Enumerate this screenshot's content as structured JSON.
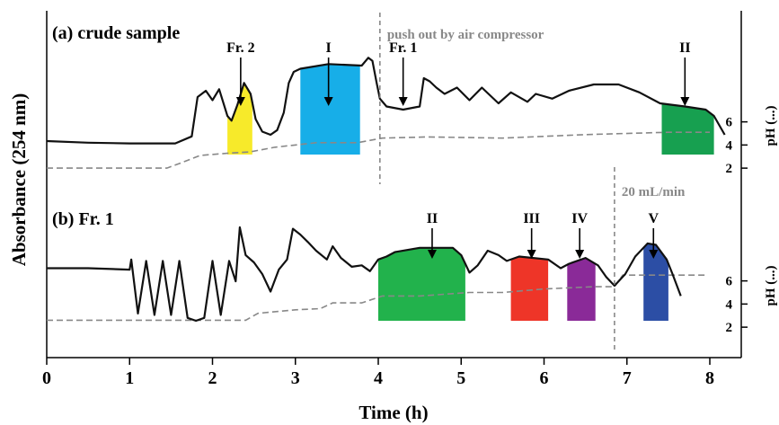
{
  "chart_data": {
    "type": "line",
    "xlabel": "Time (h)",
    "ylabel": "Absorbance (254 nm)",
    "y2label": "pH (...)",
    "xlim": [
      0,
      8.3
    ],
    "x_ticks": [
      "0",
      "1",
      "2",
      "3",
      "4",
      "5",
      "6",
      "7",
      "8"
    ],
    "ph_ticks": [
      "2",
      "4",
      "6"
    ],
    "ph_range": [
      1,
      9
    ],
    "panels": [
      {
        "id": "a",
        "label": "(a) crude sample",
        "divider_x": 4.02,
        "divider_label": "push out by air compressor",
        "absorbance_trace": [
          [
            0,
            1.6
          ],
          [
            0.5,
            1.5
          ],
          [
            1,
            1.45
          ],
          [
            1.55,
            1.45
          ],
          [
            1.75,
            1.9
          ],
          [
            1.82,
            4.4
          ],
          [
            1.92,
            4.8
          ],
          [
            2.0,
            4.2
          ],
          [
            2.08,
            4.9
          ],
          [
            2.18,
            3.2
          ],
          [
            2.23,
            2.9
          ],
          [
            2.3,
            3.9
          ],
          [
            2.38,
            5.3
          ],
          [
            2.46,
            4.6
          ],
          [
            2.52,
            3.0
          ],
          [
            2.6,
            2.2
          ],
          [
            2.7,
            2.0
          ],
          [
            2.78,
            2.3
          ],
          [
            2.86,
            3.4
          ],
          [
            2.92,
            5.3
          ],
          [
            2.98,
            6.0
          ],
          [
            3.06,
            6.2
          ],
          [
            3.4,
            6.5
          ],
          [
            3.8,
            6.4
          ],
          [
            3.88,
            6.9
          ],
          [
            3.93,
            6.7
          ],
          [
            3.98,
            5.3
          ],
          [
            4.02,
            4.3
          ],
          [
            4.1,
            3.8
          ],
          [
            4.3,
            3.6
          ],
          [
            4.5,
            3.8
          ],
          [
            4.55,
            5.6
          ],
          [
            4.62,
            5.4
          ],
          [
            4.7,
            5.0
          ],
          [
            4.8,
            4.6
          ],
          [
            4.95,
            5.0
          ],
          [
            5.1,
            4.2
          ],
          [
            5.25,
            5.0
          ],
          [
            5.45,
            4.0
          ],
          [
            5.6,
            4.7
          ],
          [
            5.8,
            4.1
          ],
          [
            5.9,
            4.6
          ],
          [
            6.1,
            4.3
          ],
          [
            6.3,
            4.8
          ],
          [
            6.6,
            5.2
          ],
          [
            6.9,
            5.2
          ],
          [
            7.15,
            4.7
          ],
          [
            7.4,
            4.0
          ],
          [
            7.7,
            3.8
          ],
          [
            7.95,
            3.6
          ],
          [
            8.05,
            3.2
          ],
          [
            8.18,
            2.0
          ]
        ],
        "ph_profile": [
          [
            0,
            2.0
          ],
          [
            1.45,
            2.0
          ],
          [
            1.6,
            2.4
          ],
          [
            1.85,
            3.1
          ],
          [
            2.2,
            3.3
          ],
          [
            2.45,
            3.4
          ],
          [
            2.75,
            3.8
          ],
          [
            3.25,
            4.2
          ],
          [
            3.75,
            4.2
          ],
          [
            4.05,
            4.6
          ],
          [
            4.6,
            4.7
          ],
          [
            5.5,
            4.6
          ],
          [
            6.5,
            4.9
          ],
          [
            7.5,
            5.1
          ],
          [
            8.0,
            5.1
          ]
        ],
        "fractions": [
          {
            "label": "Fr. 2",
            "start": 2.18,
            "end": 2.48,
            "color": "#f7ea2a"
          },
          {
            "label": "I",
            "start": 3.06,
            "end": 3.78,
            "color": "#17aee8"
          },
          {
            "label": "II",
            "start": 7.42,
            "end": 8.05,
            "color": "#17a050"
          }
        ],
        "arrows": [
          {
            "label": "Fr. 2",
            "x": 2.34
          },
          {
            "label": "I",
            "x": 3.4
          },
          {
            "label": "Fr. 1",
            "x": 4.3
          },
          {
            "label": "II",
            "x": 7.7
          }
        ]
      },
      {
        "id": "b",
        "label": "(b) Fr. 1",
        "divider_x": 6.85,
        "divider_label": "20 mL/min",
        "absorbance_trace": [
          [
            0,
            4.4
          ],
          [
            0.5,
            4.4
          ],
          [
            1.0,
            4.3
          ],
          [
            1.02,
            5.0
          ],
          [
            1.1,
            1.3
          ],
          [
            1.2,
            4.9
          ],
          [
            1.3,
            1.2
          ],
          [
            1.4,
            4.9
          ],
          [
            1.5,
            1.2
          ],
          [
            1.6,
            4.9
          ],
          [
            1.7,
            1.0
          ],
          [
            1.8,
            0.8
          ],
          [
            1.9,
            1.0
          ],
          [
            2.0,
            4.9
          ],
          [
            2.1,
            1.2
          ],
          [
            2.2,
            4.9
          ],
          [
            2.28,
            3.5
          ],
          [
            2.33,
            7.2
          ],
          [
            2.4,
            5.3
          ],
          [
            2.5,
            4.8
          ],
          [
            2.6,
            4.0
          ],
          [
            2.7,
            2.8
          ],
          [
            2.8,
            4.3
          ],
          [
            2.9,
            5.0
          ],
          [
            2.97,
            7.1
          ],
          [
            3.06,
            6.7
          ],
          [
            3.15,
            6.2
          ],
          [
            3.25,
            5.6
          ],
          [
            3.38,
            5.0
          ],
          [
            3.45,
            5.9
          ],
          [
            3.55,
            5.1
          ],
          [
            3.68,
            4.5
          ],
          [
            3.8,
            4.6
          ],
          [
            3.9,
            4.2
          ],
          [
            4.0,
            5.0
          ],
          [
            4.1,
            5.2
          ],
          [
            4.2,
            5.5
          ],
          [
            4.5,
            5.8
          ],
          [
            4.9,
            5.8
          ],
          [
            5.0,
            5.3
          ],
          [
            5.1,
            4.1
          ],
          [
            5.2,
            4.6
          ],
          [
            5.32,
            5.6
          ],
          [
            5.45,
            5.3
          ],
          [
            5.55,
            4.9
          ],
          [
            5.7,
            5.2
          ],
          [
            6.05,
            5.0
          ],
          [
            6.2,
            4.4
          ],
          [
            6.3,
            4.7
          ],
          [
            6.5,
            5.1
          ],
          [
            6.65,
            4.6
          ],
          [
            6.75,
            3.8
          ],
          [
            6.85,
            3.2
          ],
          [
            6.98,
            4.0
          ],
          [
            7.1,
            5.2
          ],
          [
            7.25,
            6.1
          ],
          [
            7.35,
            6.0
          ],
          [
            7.48,
            5.0
          ],
          [
            7.55,
            4.0
          ],
          [
            7.65,
            2.5
          ]
        ],
        "ph_profile": [
          [
            0,
            2.6
          ],
          [
            1.0,
            2.6
          ],
          [
            2.4,
            2.6
          ],
          [
            2.55,
            3.2
          ],
          [
            3.0,
            3.5
          ],
          [
            3.3,
            3.6
          ],
          [
            3.45,
            4.1
          ],
          [
            3.8,
            4.1
          ],
          [
            4.05,
            4.7
          ],
          [
            4.5,
            4.7
          ],
          [
            5.1,
            5.0
          ],
          [
            5.5,
            5.0
          ],
          [
            6.0,
            5.3
          ],
          [
            6.6,
            5.5
          ],
          [
            6.85,
            5.5
          ],
          [
            6.95,
            6.5
          ],
          [
            7.5,
            6.5
          ],
          [
            7.95,
            6.5
          ]
        ],
        "fractions": [
          {
            "label": "II",
            "start": 4.0,
            "end": 5.05,
            "color": "#22b24c"
          },
          {
            "label": "III",
            "start": 5.6,
            "end": 6.05,
            "color": "#ee3528"
          },
          {
            "label": "IV",
            "start": 6.28,
            "end": 6.62,
            "color": "#8a2a98"
          },
          {
            "label": "V",
            "start": 7.2,
            "end": 7.5,
            "color": "#2c4ea5"
          }
        ],
        "arrows": [
          {
            "label": "II",
            "x": 4.65
          },
          {
            "label": "III",
            "x": 5.85
          },
          {
            "label": "IV",
            "x": 6.43
          },
          {
            "label": "V",
            "x": 7.32
          }
        ]
      }
    ]
  }
}
